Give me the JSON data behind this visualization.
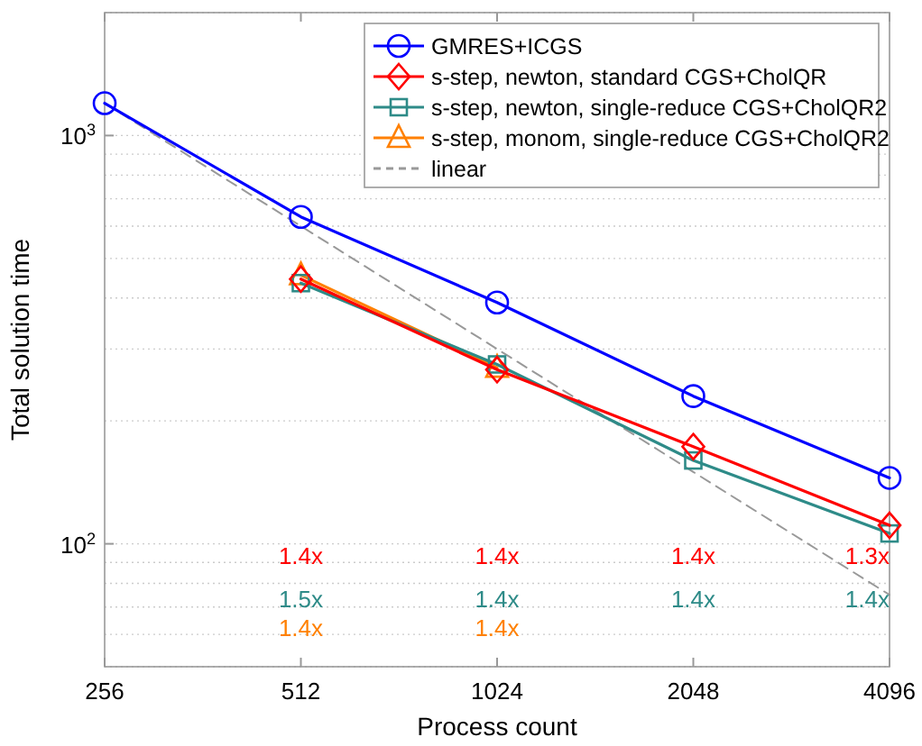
{
  "chart_data": {
    "type": "line",
    "xlabel": "Process count",
    "ylabel": "Total solution time",
    "log": "xy",
    "x": [
      256,
      512,
      1024,
      2048,
      4096
    ],
    "xlim": [
      256,
      4096
    ],
    "xticks": [
      256,
      512,
      1024,
      2048,
      4096
    ],
    "ylim": [
      50,
      2000
    ],
    "yticks": [
      {
        "value": 100,
        "label": "10$^{2}$"
      },
      {
        "value": 1000,
        "label": "10$^{3}$"
      }
    ],
    "grid": "y",
    "legend": "top right",
    "series": [
      {
        "name": "GMRES+ICGS",
        "color": "#0000ff",
        "marker": "circle",
        "values": [
          1200,
          632,
          390,
          230,
          145
        ]
      },
      {
        "name": "s-step, newton, standard CGS+CholQR",
        "color": "#ff0000",
        "marker": "diamond",
        "values": [
          null,
          445,
          267,
          173,
          111
        ]
      },
      {
        "name": "s-step, newton, single-reduce CGS+CholQR2",
        "color": "#2e8b88",
        "marker": "square",
        "values": [
          null,
          435,
          275,
          160,
          106
        ]
      },
      {
        "name": "s-step, monom, single-reduce CGS+CholQR2",
        "color": "#ff8000",
        "marker": "triangle",
        "values": [
          null,
          455,
          270,
          null,
          null
        ]
      },
      {
        "name": "linear",
        "color": "#999999",
        "marker": "none",
        "line_style": "dashed",
        "values": [
          1200,
          600,
          300,
          150,
          75
        ]
      }
    ],
    "annotations": [
      "1.4x",
      "1.4x",
      "1.4x",
      "1.3x",
      "1.5x",
      "1.4x",
      "1.4x",
      "1.4x",
      "1.4x",
      "1.4x"
    ]
  }
}
